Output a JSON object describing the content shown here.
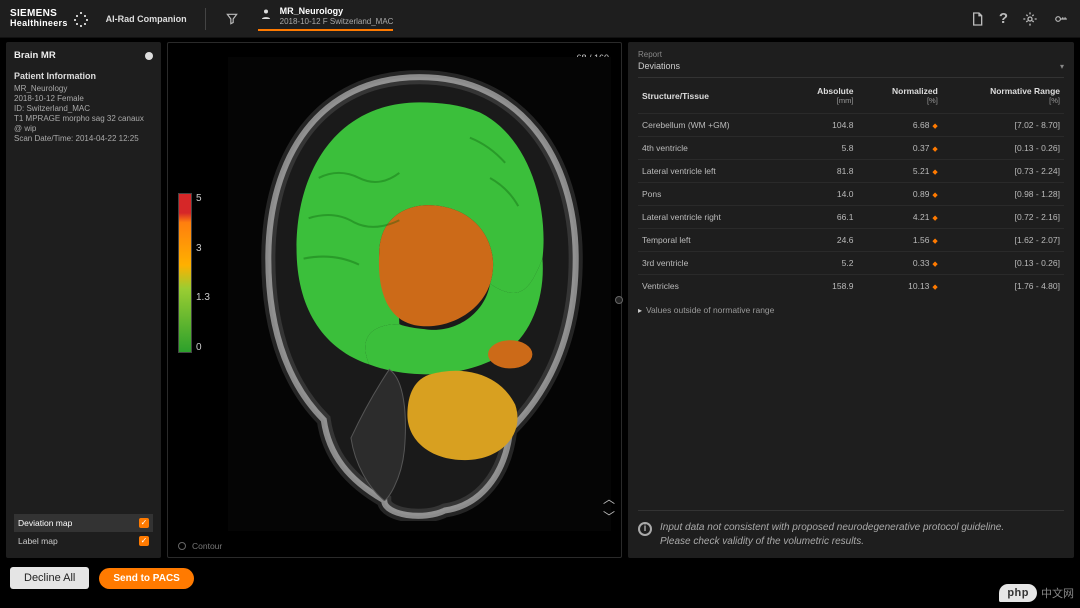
{
  "brand": {
    "line1": "SIEMENS",
    "line2": "Healthineers",
    "companion": "AI-Rad Companion"
  },
  "patient_tab": {
    "name": "MR_Neurology",
    "detail": "2018-10-12 F Switzerland_MAC"
  },
  "top_icons": {
    "doc": "document-icon",
    "help": "?",
    "gear": "gear-icon",
    "key": "key-icon"
  },
  "left": {
    "title": "Brain MR",
    "pi_header": "Patient Information",
    "lines": [
      "MR_Neurology",
      "2018-10-12 Female",
      "ID: Switzerland_MAC",
      "T1 MPRAGE morpho sag 32 canaux @ wip",
      "Scan Date/Time: 2014-04-22 12:25"
    ],
    "maps": {
      "deviation": "Deviation map",
      "label": "Label map"
    }
  },
  "viewer": {
    "slice": "68 / 160",
    "contour_label": "Contour",
    "colorbar": {
      "ticks": [
        "5",
        "3",
        "1.3",
        "0"
      ],
      "gradient": [
        "#d62728",
        "#ff7f0e",
        "#ffb000",
        "#9acd32",
        "#2ca02c"
      ]
    },
    "brain": {
      "skull_stroke": "#e8e8e8",
      "gm_fill": "#3bbf3b",
      "central_fill": "#cc6a18",
      "cerebellum_fill": "#d8a020",
      "bg": "#050505"
    }
  },
  "report": {
    "label": "Report",
    "selection": "Deviations",
    "columns": {
      "structure": "Structure/Tissue",
      "absolute": "Absolute",
      "absolute_unit": "[mm]",
      "normalized": "Normalized",
      "normalized_unit": "[%]",
      "range": "Normative Range",
      "range_unit": "[%]"
    },
    "rows": [
      {
        "name": "Cerebellum (WM +GM)",
        "abs": "104.8",
        "norm": "6.68",
        "range": "[7.02 - 8.70]"
      },
      {
        "name": "4th ventricle",
        "abs": "5.8",
        "norm": "0.37",
        "range": "[0.13 - 0.26]"
      },
      {
        "name": "Lateral ventricle left",
        "abs": "81.8",
        "norm": "5.21",
        "range": "[0.73 - 2.24]"
      },
      {
        "name": "Pons",
        "abs": "14.0",
        "norm": "0.89",
        "range": "[0.98 - 1.28]"
      },
      {
        "name": "Lateral ventricle right",
        "abs": "66.1",
        "norm": "4.21",
        "range": "[0.72 - 2.16]"
      },
      {
        "name": "Temporal left",
        "abs": "24.6",
        "norm": "1.56",
        "range": "[1.62 - 2.07]"
      },
      {
        "name": "3rd ventricle",
        "abs": "5.2",
        "norm": "0.33",
        "range": "[0.13 - 0.26]"
      },
      {
        "name": "Ventricles",
        "abs": "158.9",
        "norm": "10.13",
        "range": "[1.76 - 4.80]"
      }
    ],
    "note": "Values outside of normative range",
    "warning_l1": "Input data not consistent with proposed neurodegenerative protocol guideline.",
    "warning_l2": "Please check validity of the volumetric results."
  },
  "actions": {
    "decline": "Decline All",
    "send": "Send to PACS"
  },
  "watermark": {
    "logo": "php",
    "text": "中文网"
  },
  "colors": {
    "bg_panel": "#1e1e1e",
    "accent": "#ff7a00",
    "text": "#cccccc",
    "text_dim": "#999999",
    "border": "#2a2a2a"
  }
}
